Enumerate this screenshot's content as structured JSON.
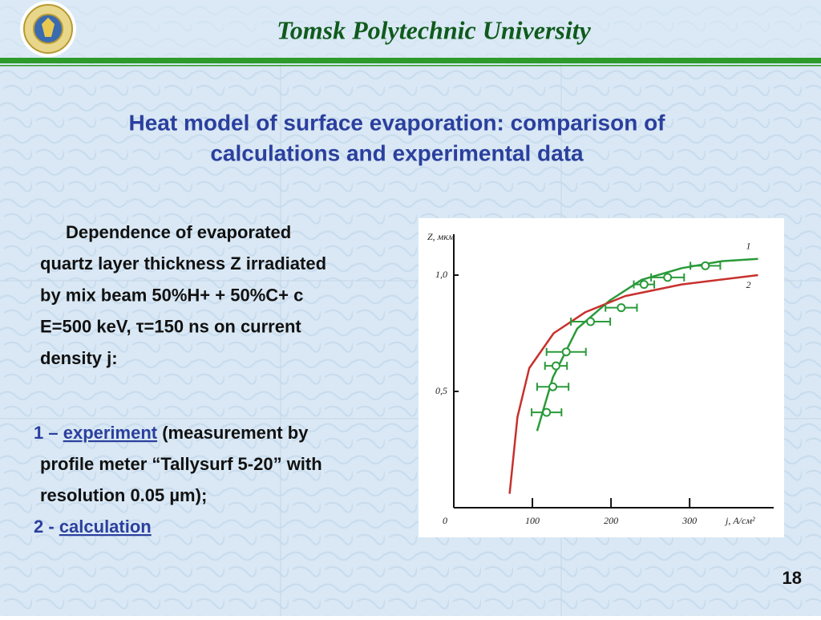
{
  "header": {
    "institution": "Tomsk Polytechnic University"
  },
  "title": [
    "Heat model of surface evaporation: comparison of",
    "calculations and experimental data"
  ],
  "description": [
    "Dependence of evaporated",
    "quartz layer thickness Z irradiated",
    "by mix beam 50%H+ + 50%C+ c",
    "E=500 keV,  τ=150 ns on current",
    "density j:"
  ],
  "legend_items": [
    {
      "marker": "1 –",
      "link": "experiment",
      "lines": [
        "(measurement by",
        "profile meter “Tallysurf 5-20” with",
        "resolution 0.05 µm);"
      ]
    },
    {
      "marker": "2 -",
      "link": "calculation",
      "lines": []
    }
  ],
  "page_number": "18",
  "chart_data": {
    "type": "line",
    "y_label": "Z, мкм",
    "x_label": "j, А/см²",
    "xlim": [
      0,
      410
    ],
    "ylim": [
      0,
      1.15
    ],
    "xticks": [
      100,
      200,
      300
    ],
    "yticks": [
      0,
      {
        "value": 0.5,
        "label": "0,5"
      },
      {
        "value": 1,
        "label": "1,0"
      }
    ],
    "series": [
      {
        "name": "1",
        "color": "#2a9a3a",
        "x": [
          106,
          126,
          157,
          198,
          239,
          290,
          341,
          387
        ],
        "values": [
          0.33,
          0.56,
          0.77,
          0.89,
          0.98,
          1.03,
          1.06,
          1.07
        ]
      },
      {
        "name": "2",
        "color": "#c8302c",
        "x": [
          71,
          81,
          96,
          127,
          167,
          218,
          290,
          387
        ],
        "values": [
          0.06,
          0.39,
          0.6,
          0.75,
          0.84,
          0.91,
          0.96,
          1.0
        ]
      }
    ],
    "points": {
      "color": "#2a9a3a",
      "x": [
        118,
        126,
        130,
        143,
        174,
        213,
        242,
        272,
        320
      ],
      "values": [
        0.41,
        0.52,
        0.61,
        0.67,
        0.8,
        0.86,
        0.96,
        0.99,
        1.04
      ],
      "xerr": [
        19,
        20,
        14,
        25,
        25,
        20,
        13,
        21,
        19
      ]
    }
  }
}
